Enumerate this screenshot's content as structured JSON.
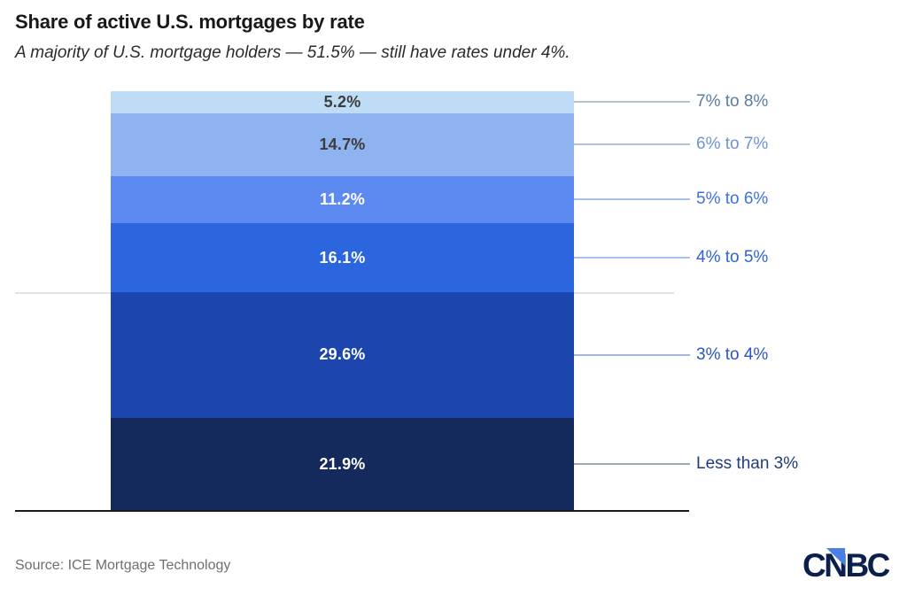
{
  "header": {
    "title": "Share of active U.S. mortgages by rate",
    "subtitle": "A majority of U.S. mortgage holders — 51.5% — still have rates under 4%."
  },
  "chart_data": {
    "type": "bar",
    "subtype": "single-stacked-column",
    "title": "Share of active U.S. mortgages by rate",
    "unit": "%",
    "segments_order": "top-to-bottom",
    "segments": [
      {
        "category": "7% to 8%",
        "value": 5.2,
        "value_label": "5.2%",
        "fill": "#BEDCF6",
        "value_label_color": "#3C3C3C",
        "category_label_color": "#5A7CA3",
        "leader_line_color": "#B4C2D1"
      },
      {
        "category": "6% to 7%",
        "value": 14.7,
        "value_label": "14.7%",
        "fill": "#8FB2F0",
        "value_label_color": "#3C3C3C",
        "category_label_color": "#6E92D6",
        "leader_line_color": "#AFC2DF"
      },
      {
        "category": "5% to 6%",
        "value": 11.2,
        "value_label": "11.2%",
        "fill": "#5D8AF0",
        "value_label_color": "#FFFFFF",
        "category_label_color": "#3F6FE8",
        "leader_line_color": "#A9BFEE"
      },
      {
        "category": "4% to 5%",
        "value": 16.1,
        "value_label": "16.1%",
        "fill": "#2B66DE",
        "value_label_color": "#FFFFFF",
        "category_label_color": "#2F62DC",
        "leader_line_color": "#A7C0EF"
      },
      {
        "category": "3% to 4%",
        "value": 29.6,
        "value_label": "29.6%",
        "fill": "#1C46AE",
        "value_label_color": "#FFFFFF",
        "category_label_color": "#2C55C4",
        "leader_line_color": "#A5B6DF"
      },
      {
        "category": "Less than 3%",
        "value": 21.9,
        "value_label": "21.9%",
        "fill": "#14295C",
        "value_label_color": "#FFFFFF",
        "category_label_color": "#1E3C7D",
        "leader_line_color": "#98A6BF"
      }
    ],
    "annotations": {
      "majority_under_4_percent": "51.5%"
    },
    "gridline": {
      "visible": true,
      "aligned_after_category": "4% to 5%",
      "color": "#E3E3E3"
    }
  },
  "footer": {
    "source": "Source: ICE Mortgage Technology",
    "logo": {
      "text": "CNBC",
      "letters_color": "#0A1F4D",
      "triangle_color": "#4A7FE3"
    }
  }
}
